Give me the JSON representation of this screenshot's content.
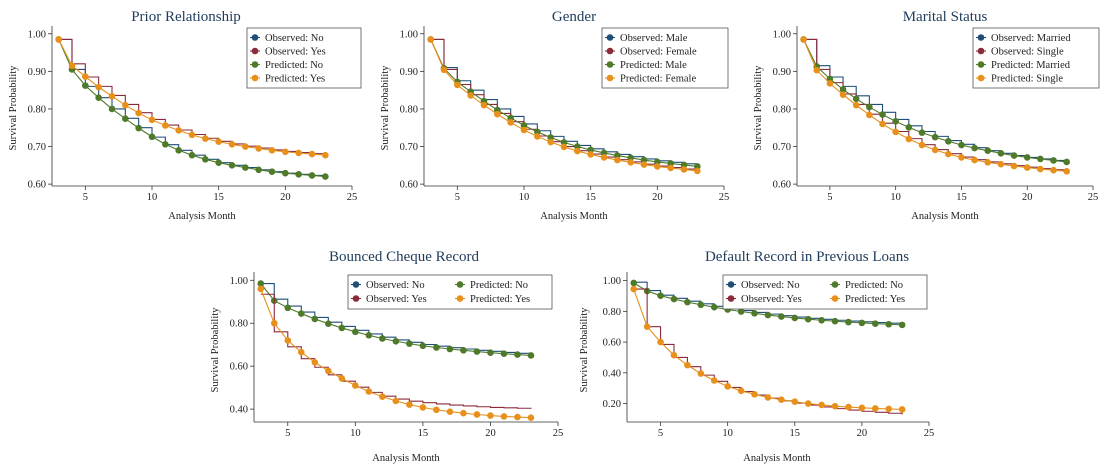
{
  "colors": {
    "observed_no": "#1f4e79",
    "observed_yes": "#8b2a3a",
    "predicted_no": "#4e7a2a",
    "predicted_yes": "#e8901c"
  },
  "chart_data": [
    {
      "type": "line",
      "title": "Prior Relationship",
      "xlabel": "Analysis Month",
      "ylabel": "Survival Probability",
      "xlim": [
        2.5,
        25
      ],
      "ylim": [
        0.595,
        1.01
      ],
      "xticks": [
        "5",
        "10",
        "15",
        "20",
        "25"
      ],
      "xtick_values": [
        5,
        10,
        15,
        20,
        25
      ],
      "yticks": [
        "0.60",
        "0.70",
        "0.80",
        "0.90",
        "1.00"
      ],
      "ytick_values": [
        0.6,
        0.7,
        0.8,
        0.9,
        1.0
      ],
      "legend_placement": "top-right",
      "legend_columns": 1,
      "x": [
        3,
        4,
        5,
        6,
        7,
        8,
        9,
        10,
        11,
        12,
        13,
        14,
        15,
        16,
        17,
        18,
        19,
        20,
        21,
        22,
        23
      ],
      "series": [
        {
          "name": "Observed: No",
          "kind": "step",
          "color_key": "observed_no",
          "values": [
            0.985,
            0.905,
            0.86,
            0.83,
            0.8,
            0.775,
            0.75,
            0.725,
            0.705,
            0.69,
            0.677,
            0.666,
            0.657,
            0.65,
            0.644,
            0.638,
            0.633,
            0.629,
            0.626,
            0.623,
            0.62
          ]
        },
        {
          "name": "Observed: Yes",
          "kind": "step",
          "color_key": "observed_yes",
          "values": [
            0.985,
            0.92,
            0.885,
            0.86,
            0.836,
            0.812,
            0.79,
            0.772,
            0.757,
            0.744,
            0.732,
            0.722,
            0.714,
            0.707,
            0.701,
            0.696,
            0.691,
            0.687,
            0.684,
            0.681,
            0.678
          ]
        },
        {
          "name": "Predicted: No",
          "kind": "marker",
          "color_key": "predicted_no",
          "values": [
            0.985,
            0.905,
            0.862,
            0.83,
            0.8,
            0.774,
            0.749,
            0.726,
            0.706,
            0.69,
            0.677,
            0.666,
            0.657,
            0.65,
            0.644,
            0.638,
            0.633,
            0.629,
            0.626,
            0.623,
            0.62
          ]
        },
        {
          "name": "Predicted: Yes",
          "kind": "marker",
          "color_key": "predicted_yes",
          "values": [
            0.985,
            0.915,
            0.886,
            0.858,
            0.834,
            0.81,
            0.789,
            0.771,
            0.756,
            0.743,
            0.731,
            0.721,
            0.713,
            0.706,
            0.7,
            0.695,
            0.69,
            0.686,
            0.683,
            0.68,
            0.677
          ]
        }
      ]
    },
    {
      "type": "line",
      "title": "Gender",
      "xlabel": "Analysis Month",
      "ylabel": "Survival Probability",
      "xlim": [
        2.5,
        25
      ],
      "ylim": [
        0.595,
        1.01
      ],
      "xticks": [
        "5",
        "10",
        "15",
        "20",
        "25"
      ],
      "xtick_values": [
        5,
        10,
        15,
        20,
        25
      ],
      "yticks": [
        "0.60",
        "0.70",
        "0.80",
        "0.90",
        "1.00"
      ],
      "ytick_values": [
        0.6,
        0.7,
        0.8,
        0.9,
        1.0
      ],
      "legend_placement": "top-right",
      "legend_columns": 1,
      "x": [
        3,
        4,
        5,
        6,
        7,
        8,
        9,
        10,
        11,
        12,
        13,
        14,
        15,
        16,
        17,
        18,
        19,
        20,
        21,
        22,
        23
      ],
      "series": [
        {
          "name": "Observed: Male",
          "kind": "step",
          "color_key": "observed_no",
          "values": [
            0.985,
            0.91,
            0.875,
            0.85,
            0.825,
            0.8,
            0.78,
            0.76,
            0.742,
            0.727,
            0.714,
            0.703,
            0.694,
            0.686,
            0.679,
            0.673,
            0.667,
            0.662,
            0.658,
            0.654,
            0.65
          ]
        },
        {
          "name": "Observed: Female",
          "kind": "step",
          "color_key": "observed_yes",
          "values": [
            0.985,
            0.905,
            0.865,
            0.838,
            0.812,
            0.788,
            0.766,
            0.746,
            0.728,
            0.713,
            0.7,
            0.689,
            0.68,
            0.672,
            0.665,
            0.659,
            0.653,
            0.648,
            0.644,
            0.64,
            0.636
          ]
        },
        {
          "name": "Predicted: Male",
          "kind": "marker",
          "color_key": "predicted_no",
          "values": [
            0.985,
            0.908,
            0.872,
            0.846,
            0.821,
            0.797,
            0.776,
            0.756,
            0.739,
            0.724,
            0.711,
            0.7,
            0.691,
            0.683,
            0.676,
            0.67,
            0.664,
            0.659,
            0.655,
            0.651,
            0.647
          ]
        },
        {
          "name": "Predicted: Female",
          "kind": "marker",
          "color_key": "predicted_yes",
          "values": [
            0.985,
            0.904,
            0.864,
            0.836,
            0.81,
            0.786,
            0.764,
            0.744,
            0.727,
            0.712,
            0.699,
            0.688,
            0.679,
            0.671,
            0.664,
            0.658,
            0.652,
            0.647,
            0.643,
            0.639,
            0.635
          ]
        }
      ]
    },
    {
      "type": "line",
      "title": "Marital Status",
      "xlabel": "Analysis Month",
      "ylabel": "Survival Probability",
      "xlim": [
        2.5,
        25
      ],
      "ylim": [
        0.595,
        1.01
      ],
      "xticks": [
        "5",
        "10",
        "15",
        "20",
        "25"
      ],
      "xtick_values": [
        5,
        10,
        15,
        20,
        25
      ],
      "yticks": [
        "0.60",
        "0.70",
        "0.80",
        "0.90",
        "1.00"
      ],
      "ytick_values": [
        0.6,
        0.7,
        0.8,
        0.9,
        1.0
      ],
      "legend_placement": "top-right",
      "legend_columns": 1,
      "x": [
        3,
        4,
        5,
        6,
        7,
        8,
        9,
        10,
        11,
        12,
        13,
        14,
        15,
        16,
        17,
        18,
        19,
        20,
        21,
        22,
        23
      ],
      "series": [
        {
          "name": "Observed: Married",
          "kind": "step",
          "color_key": "observed_no",
          "values": [
            0.985,
            0.915,
            0.885,
            0.86,
            0.835,
            0.812,
            0.791,
            0.772,
            0.755,
            0.74,
            0.727,
            0.716,
            0.706,
            0.697,
            0.689,
            0.682,
            0.676,
            0.671,
            0.667,
            0.663,
            0.66
          ]
        },
        {
          "name": "Observed: Single",
          "kind": "step",
          "color_key": "observed_yes",
          "values": [
            0.985,
            0.905,
            0.87,
            0.84,
            0.812,
            0.786,
            0.762,
            0.74,
            0.721,
            0.705,
            0.692,
            0.681,
            0.672,
            0.665,
            0.659,
            0.654,
            0.649,
            0.645,
            0.641,
            0.638,
            0.635
          ]
        },
        {
          "name": "Predicted: Married",
          "kind": "marker",
          "color_key": "predicted_no",
          "values": [
            0.985,
            0.913,
            0.88,
            0.852,
            0.827,
            0.805,
            0.785,
            0.767,
            0.751,
            0.737,
            0.725,
            0.714,
            0.704,
            0.696,
            0.689,
            0.682,
            0.676,
            0.671,
            0.667,
            0.663,
            0.659
          ]
        },
        {
          "name": "Predicted: Single",
          "kind": "marker",
          "color_key": "predicted_yes",
          "values": [
            0.985,
            0.903,
            0.868,
            0.838,
            0.81,
            0.784,
            0.76,
            0.739,
            0.72,
            0.704,
            0.691,
            0.68,
            0.671,
            0.664,
            0.658,
            0.653,
            0.648,
            0.644,
            0.64,
            0.637,
            0.634
          ]
        }
      ]
    },
    {
      "type": "line",
      "title": "Bounced Cheque Record",
      "xlabel": "Analysis Month",
      "ylabel": "Survival Probability",
      "xlim": [
        2.5,
        25
      ],
      "ylim": [
        0.34,
        1.02
      ],
      "xticks": [
        "5",
        "10",
        "15",
        "20",
        "25"
      ],
      "xtick_values": [
        5,
        10,
        15,
        20,
        25
      ],
      "yticks": [
        "0.40",
        "0.60",
        "0.80",
        "1.00"
      ],
      "ytick_values": [
        0.4,
        0.6,
        0.8,
        1.0
      ],
      "legend_placement": "top-right",
      "legend_columns": 2,
      "x": [
        3,
        4,
        5,
        6,
        7,
        8,
        9,
        10,
        11,
        12,
        13,
        14,
        15,
        16,
        17,
        18,
        19,
        20,
        21,
        22,
        23
      ],
      "series": [
        {
          "name": "Observed: No",
          "kind": "step",
          "color_key": "observed_no",
          "values": [
            0.985,
            0.912,
            0.88,
            0.852,
            0.827,
            0.805,
            0.785,
            0.767,
            0.75,
            0.735,
            0.722,
            0.711,
            0.701,
            0.693,
            0.686,
            0.68,
            0.674,
            0.669,
            0.664,
            0.66,
            0.656
          ]
        },
        {
          "name": "Predicted: No",
          "kind": "marker",
          "color_key": "predicted_no",
          "values": [
            0.985,
            0.905,
            0.872,
            0.845,
            0.82,
            0.798,
            0.778,
            0.76,
            0.744,
            0.729,
            0.716,
            0.705,
            0.695,
            0.687,
            0.68,
            0.674,
            0.668,
            0.663,
            0.658,
            0.654,
            0.65
          ]
        },
        {
          "name": "Observed: Yes",
          "kind": "step",
          "color_key": "observed_yes",
          "values": [
            0.935,
            0.76,
            0.69,
            0.635,
            0.595,
            0.56,
            0.53,
            0.502,
            0.478,
            0.46,
            0.447,
            0.437,
            0.43,
            0.424,
            0.419,
            0.415,
            0.411,
            0.408,
            0.406,
            0.404,
            0.402
          ]
        },
        {
          "name": "Predicted: Yes",
          "kind": "marker",
          "color_key": "predicted_yes",
          "values": [
            0.96,
            0.8,
            0.72,
            0.665,
            0.618,
            0.578,
            0.543,
            0.51,
            0.482,
            0.458,
            0.438,
            0.421,
            0.408,
            0.397,
            0.388,
            0.381,
            0.375,
            0.37,
            0.366,
            0.363,
            0.36
          ]
        }
      ]
    },
    {
      "type": "line",
      "title": "Default Record in Previous Loans",
      "xlabel": "Analysis Month",
      "ylabel": "Survival Probability",
      "xlim": [
        2.5,
        25
      ],
      "ylim": [
        0.08,
        1.03
      ],
      "xticks": [
        "5",
        "10",
        "15",
        "20",
        "25"
      ],
      "xtick_values": [
        5,
        10,
        15,
        20,
        25
      ],
      "yticks": [
        "0.20",
        "0.40",
        "0.60",
        "0.80",
        "1.00"
      ],
      "ytick_values": [
        0.2,
        0.4,
        0.6,
        0.8,
        1.0
      ],
      "legend_placement": "top-right",
      "legend_columns": 2,
      "x": [
        3,
        4,
        5,
        6,
        7,
        8,
        9,
        10,
        11,
        12,
        13,
        14,
        15,
        16,
        17,
        18,
        19,
        20,
        21,
        22,
        23
      ],
      "series": [
        {
          "name": "Observed: No",
          "kind": "step",
          "color_key": "observed_no",
          "values": [
            0.99,
            0.935,
            0.905,
            0.885,
            0.866,
            0.849,
            0.833,
            0.818,
            0.805,
            0.793,
            0.782,
            0.772,
            0.763,
            0.755,
            0.748,
            0.742,
            0.737,
            0.732,
            0.727,
            0.723,
            0.719
          ]
        },
        {
          "name": "Predicted: No",
          "kind": "marker",
          "color_key": "predicted_no",
          "values": [
            0.985,
            0.932,
            0.902,
            0.88,
            0.86,
            0.843,
            0.827,
            0.812,
            0.799,
            0.787,
            0.776,
            0.766,
            0.757,
            0.749,
            0.742,
            0.736,
            0.73,
            0.725,
            0.72,
            0.716,
            0.712
          ]
        },
        {
          "name": "Observed: Yes",
          "kind": "step",
          "color_key": "observed_yes",
          "values": [
            0.945,
            0.7,
            0.585,
            0.5,
            0.44,
            0.385,
            0.345,
            0.305,
            0.278,
            0.255,
            0.235,
            0.218,
            0.203,
            0.19,
            0.178,
            0.167,
            0.158,
            0.15,
            0.143,
            0.137,
            0.13
          ]
        },
        {
          "name": "Predicted: Yes",
          "kind": "marker",
          "color_key": "predicted_yes",
          "values": [
            0.945,
            0.7,
            0.6,
            0.515,
            0.45,
            0.395,
            0.35,
            0.312,
            0.283,
            0.26,
            0.24,
            0.225,
            0.212,
            0.2,
            0.191,
            0.183,
            0.177,
            0.172,
            0.168,
            0.165,
            0.162
          ]
        }
      ]
    }
  ]
}
